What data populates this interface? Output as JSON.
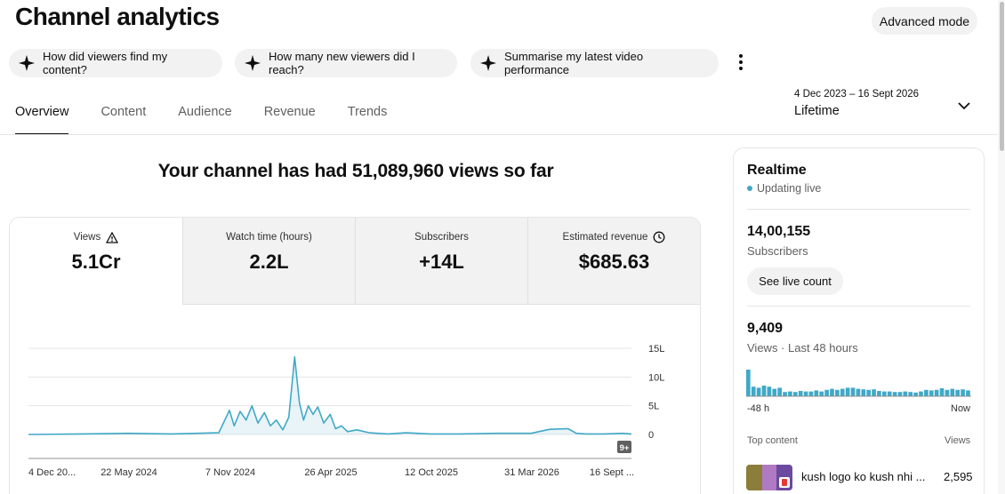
{
  "header": {
    "title": "Channel analytics",
    "advanced_mode": "Advanced mode"
  },
  "prompts": [
    "How did viewers find my content?",
    "How many new viewers did I reach?",
    "Summarise my latest video performance"
  ],
  "tabs": [
    "Overview",
    "Content",
    "Audience",
    "Revenue",
    "Trends"
  ],
  "date_range": {
    "dates": "4 Dec 2023 – 16 Sept 2026",
    "label": "Lifetime"
  },
  "headline": "Your channel has had 51,089,960 views so far",
  "metrics": [
    {
      "label": "Views",
      "value": "5.1Cr",
      "icon": "warning-icon"
    },
    {
      "label": "Watch time (hours)",
      "value": "2.2L"
    },
    {
      "label": "Subscribers",
      "value": "+14L"
    },
    {
      "label": "Estimated revenue",
      "value": "$685.63",
      "icon": "clock-icon"
    }
  ],
  "chart_data": {
    "type": "area",
    "y_ticks": [
      "15L",
      "10L",
      "5L",
      "0"
    ],
    "ylim": [
      0,
      1500000
    ],
    "x_ticks": [
      "4 Dec 20...",
      "22 May 2024",
      "7 Nov 2024",
      "26 Apr 2025",
      "12 Oct 2025",
      "31 Mar 2026",
      "16 Sept ..."
    ],
    "x_range": [
      "2023-12-04",
      "2026-09-16"
    ],
    "badge": "9+",
    "color": "#41a8c7",
    "series": [
      {
        "x": [
          "2023-12-04",
          "2024-03-01",
          "2024-05-22",
          "2024-08-01",
          "2024-10-20",
          "2024-11-07",
          "2024-11-15",
          "2024-11-25",
          "2024-12-05",
          "2024-12-15",
          "2024-12-25",
          "2025-01-05",
          "2025-01-15",
          "2025-01-25",
          "2025-02-05",
          "2025-02-15",
          "2025-02-25",
          "2025-03-05",
          "2025-03-12",
          "2025-03-20",
          "2025-03-28",
          "2025-04-05",
          "2025-04-15",
          "2025-04-26",
          "2025-05-05",
          "2025-05-15",
          "2025-05-25",
          "2025-06-10",
          "2025-07-01",
          "2025-08-01",
          "2025-09-01",
          "2025-10-12",
          "2025-12-01",
          "2026-02-01",
          "2026-03-31",
          "2026-05-01",
          "2026-06-01",
          "2026-06-15",
          "2026-07-01",
          "2026-08-01",
          "2026-09-01",
          "2026-09-16"
        ],
        "values": [
          0,
          10000,
          20000,
          10000,
          30000,
          420000,
          150000,
          400000,
          250000,
          500000,
          200000,
          380000,
          150000,
          250000,
          80000,
          300000,
          1350000,
          550000,
          250000,
          500000,
          350000,
          480000,
          200000,
          350000,
          100000,
          150000,
          50000,
          80000,
          30000,
          10000,
          30000,
          10000,
          10000,
          20000,
          20000,
          90000,
          100000,
          20000,
          10000,
          10000,
          20000,
          10000
        ]
      }
    ]
  },
  "realtime": {
    "title": "Realtime",
    "status": "Updating live",
    "subscribers_value": "14,00,155",
    "subscribers_label": "Subscribers",
    "see_live_count": "See live count",
    "views_value": "9,409",
    "views_label": "Views · Last 48 hours",
    "axis_start": "-48 h",
    "axis_end": "Now",
    "bars": [
      250,
      90,
      80,
      100,
      90,
      70,
      80,
      40,
      45,
      40,
      50,
      45,
      45,
      55,
      45,
      60,
      70,
      60,
      70,
      80,
      80,
      70,
      65,
      60,
      65,
      50,
      45,
      45,
      40,
      40,
      45,
      40,
      35,
      45,
      60,
      55,
      60,
      75,
      60,
      70,
      60,
      65,
      55
    ],
    "top_content_label": "Top content",
    "top_content_views_label": "Views",
    "top_items": [
      {
        "title": "kush logo ko kush nhi ...",
        "views": "2,595"
      }
    ]
  }
}
